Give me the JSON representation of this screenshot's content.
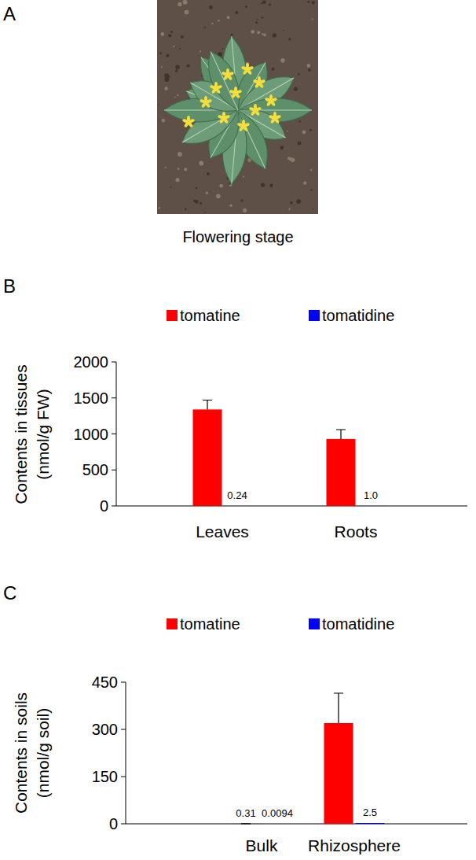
{
  "figure": {
    "panel_labels": [
      "A",
      "B",
      "C"
    ],
    "image_caption": "Flowering stage"
  },
  "chart_data": [
    {
      "type": "bar",
      "categories": [
        "Leaves",
        "Roots"
      ],
      "ylabel": "Contents in tissues\n(nmol/g FW)",
      "ylim": [
        0,
        2000
      ],
      "yticks": [
        0,
        500,
        1000,
        1500,
        2000
      ],
      "legend": "top",
      "data_labels": true,
      "series": [
        {
          "name": "tomatine",
          "color": "#ff0000",
          "values": [
            1340,
            930
          ],
          "errors": [
            130,
            130
          ]
        },
        {
          "name": "tomatidine",
          "color": "#0000ff",
          "values": [
            0.24,
            1.0
          ],
          "value_labels": [
            "0.24",
            "1.0"
          ]
        }
      ]
    },
    {
      "type": "bar",
      "categories": [
        "Bulk",
        "Rhizosphere"
      ],
      "ylabel": "Contents in soils\n(nmol/g soil)",
      "ylim": [
        0,
        450
      ],
      "yticks": [
        0,
        150,
        300,
        450
      ],
      "legend": "top",
      "data_labels": true,
      "series": [
        {
          "name": "tomatine",
          "color": "#ff0000",
          "values": [
            0.31,
            320
          ],
          "errors": [
            0,
            95
          ],
          "value_labels": [
            "0.31",
            null
          ]
        },
        {
          "name": "tomatidine",
          "color": "#0000ff",
          "values": [
            0.0094,
            2.5
          ],
          "value_labels": [
            "0.0094",
            "2.5"
          ]
        }
      ]
    }
  ]
}
